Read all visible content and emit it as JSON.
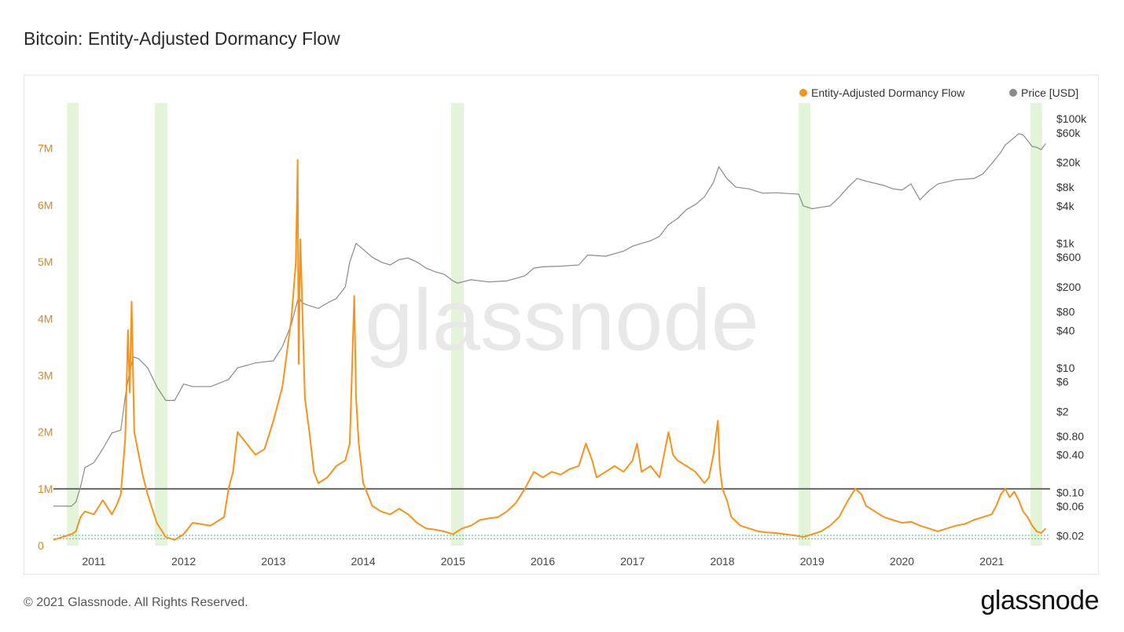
{
  "title": "Bitcoin: Entity-Adjusted Dormancy Flow",
  "footer": "© 2021 Glassnode. All Rights Reserved.",
  "brand": "glassnode",
  "watermark": "glassnode",
  "colors": {
    "dormancy": "#f7931a",
    "price": "#8a8a8a",
    "band": "#e3f4d8",
    "threshold": "#666666",
    "support": "#3cc7a0"
  },
  "chart_data": {
    "type": "line",
    "title": "Bitcoin: Entity-Adjusted Dormancy Flow",
    "legend": [
      "Entity-Adjusted Dormancy Flow",
      "Price [USD]"
    ],
    "x_ticks": [
      "2011",
      "2012",
      "2013",
      "2014",
      "2015",
      "2016",
      "2017",
      "2018",
      "2019",
      "2020",
      "2021"
    ],
    "y_left_ticks": [
      "0",
      "1M",
      "2M",
      "3M",
      "4M",
      "5M",
      "6M",
      "7M"
    ],
    "y_left_tick_values": [
      0,
      1000000,
      2000000,
      3000000,
      4000000,
      5000000,
      6000000,
      7000000
    ],
    "y_right_ticks": [
      "$0.02",
      "$0.06",
      "$0.10",
      "$0.40",
      "$0.80",
      "$2",
      "$6",
      "$10",
      "$40",
      "$80",
      "$200",
      "$600",
      "$1k",
      "$4k",
      "$8k",
      "$20k",
      "$60k",
      "$100k"
    ],
    "y_right_tick_values": [
      0.02,
      0.06,
      0.1,
      0.4,
      0.8,
      2,
      6,
      10,
      40,
      80,
      200,
      600,
      1000,
      4000,
      8000,
      20000,
      60000,
      100000
    ],
    "y_left_range": [
      0,
      7800000
    ],
    "y_right_range_log": [
      0.014,
      180000
    ],
    "x_range": [
      2010.55,
      2021.65
    ],
    "threshold_line": 1000000,
    "bottom_bands": [
      120000,
      180000
    ],
    "green_zones": [
      [
        2010.7,
        2010.83
      ],
      [
        2011.68,
        2011.82
      ],
      [
        2014.98,
        2015.12
      ],
      [
        2018.85,
        2018.98
      ],
      [
        2021.43,
        2021.56
      ]
    ],
    "series": [
      {
        "name": "Entity-Adjusted Dormancy Flow",
        "axis": "left",
        "x": [
          2010.55,
          2010.65,
          2010.75,
          2010.8,
          2010.85,
          2010.9,
          2011.0,
          2011.1,
          2011.2,
          2011.25,
          2011.3,
          2011.35,
          2011.38,
          2011.4,
          2011.42,
          2011.45,
          2011.5,
          2011.55,
          2011.6,
          2011.7,
          2011.8,
          2011.9,
          2012.0,
          2012.1,
          2012.3,
          2012.45,
          2012.5,
          2012.55,
          2012.6,
          2012.7,
          2012.8,
          2012.9,
          2013.0,
          2013.1,
          2013.2,
          2013.25,
          2013.27,
          2013.28,
          2013.3,
          2013.35,
          2013.4,
          2013.45,
          2013.5,
          2013.6,
          2013.7,
          2013.8,
          2013.85,
          2013.9,
          2013.92,
          2013.95,
          2014.0,
          2014.1,
          2014.2,
          2014.3,
          2014.4,
          2014.5,
          2014.6,
          2014.7,
          2014.8,
          2014.9,
          2015.0,
          2015.1,
          2015.2,
          2015.3,
          2015.4,
          2015.5,
          2015.6,
          2015.7,
          2015.8,
          2015.9,
          2016.0,
          2016.1,
          2016.2,
          2016.3,
          2016.4,
          2016.48,
          2016.55,
          2016.6,
          2016.7,
          2016.8,
          2016.9,
          2017.0,
          2017.05,
          2017.1,
          2017.2,
          2017.3,
          2017.4,
          2017.45,
          2017.5,
          2017.6,
          2017.7,
          2017.8,
          2017.85,
          2017.9,
          2017.95,
          2017.97,
          2018.0,
          2018.05,
          2018.1,
          2018.2,
          2018.3,
          2018.4,
          2018.5,
          2018.6,
          2018.7,
          2018.8,
          2018.9,
          2019.0,
          2019.1,
          2019.2,
          2019.3,
          2019.4,
          2019.48,
          2019.55,
          2019.6,
          2019.7,
          2019.8,
          2019.9,
          2020.0,
          2020.1,
          2020.2,
          2020.3,
          2020.4,
          2020.5,
          2020.6,
          2020.7,
          2020.8,
          2020.9,
          2021.0,
          2021.05,
          2021.1,
          2021.15,
          2021.2,
          2021.25,
          2021.3,
          2021.35,
          2021.4,
          2021.45,
          2021.5,
          2021.55,
          2021.6
        ],
        "values": [
          100000,
          150000,
          200000,
          250000,
          500000,
          600000,
          550000,
          800000,
          550000,
          700000,
          900000,
          1900000,
          3800000,
          2700000,
          4300000,
          2000000,
          1600000,
          1200000,
          900000,
          400000,
          150000,
          100000,
          200000,
          400000,
          350000,
          500000,
          1000000,
          1300000,
          2000000,
          1800000,
          1600000,
          1700000,
          2200000,
          2800000,
          4000000,
          5000000,
          6800000,
          3200000,
          5400000,
          2600000,
          2000000,
          1300000,
          1100000,
          1200000,
          1400000,
          1500000,
          1800000,
          4400000,
          2600000,
          1800000,
          1100000,
          700000,
          600000,
          550000,
          650000,
          550000,
          400000,
          300000,
          280000,
          250000,
          200000,
          300000,
          350000,
          450000,
          480000,
          500000,
          600000,
          750000,
          1000000,
          1300000,
          1200000,
          1300000,
          1250000,
          1350000,
          1400000,
          1800000,
          1500000,
          1200000,
          1300000,
          1400000,
          1300000,
          1500000,
          1800000,
          1300000,
          1400000,
          1200000,
          2000000,
          1600000,
          1500000,
          1400000,
          1300000,
          1100000,
          1200000,
          1600000,
          2200000,
          1400000,
          1000000,
          800000,
          500000,
          350000,
          300000,
          250000,
          230000,
          220000,
          200000,
          180000,
          150000,
          200000,
          250000,
          350000,
          500000,
          800000,
          1000000,
          900000,
          700000,
          600000,
          500000,
          450000,
          400000,
          420000,
          350000,
          300000,
          250000,
          300000,
          350000,
          380000,
          450000,
          500000,
          550000,
          700000,
          900000,
          1000000,
          850000,
          950000,
          800000,
          600000,
          500000,
          350000,
          250000,
          220000,
          300000
        ]
      },
      {
        "name": "Price [USD]",
        "axis": "right",
        "x": [
          2010.55,
          2010.6,
          2010.7,
          2010.75,
          2010.8,
          2010.85,
          2010.9,
          2011.0,
          2011.1,
          2011.2,
          2011.3,
          2011.35,
          2011.4,
          2011.44,
          2011.5,
          2011.6,
          2011.7,
          2011.8,
          2011.9,
          2012.0,
          2012.1,
          2012.3,
          2012.5,
          2012.6,
          2012.8,
          2013.0,
          2013.1,
          2013.2,
          2013.28,
          2013.32,
          2013.4,
          2013.5,
          2013.6,
          2013.7,
          2013.8,
          2013.85,
          2013.92,
          2014.0,
          2014.1,
          2014.2,
          2014.3,
          2014.4,
          2014.5,
          2014.6,
          2014.7,
          2014.8,
          2014.9,
          2015.0,
          2015.05,
          2015.2,
          2015.4,
          2015.6,
          2015.8,
          2015.9,
          2016.0,
          2016.2,
          2016.4,
          2016.5,
          2016.7,
          2016.9,
          2017.0,
          2017.1,
          2017.2,
          2017.3,
          2017.4,
          2017.5,
          2017.6,
          2017.7,
          2017.8,
          2017.9,
          2017.96,
          2018.05,
          2018.15,
          2018.3,
          2018.45,
          2018.6,
          2018.75,
          2018.85,
          2018.9,
          2019.0,
          2019.1,
          2019.2,
          2019.3,
          2019.4,
          2019.5,
          2019.6,
          2019.8,
          2019.9,
          2020.0,
          2020.1,
          2020.2,
          2020.3,
          2020.4,
          2020.6,
          2020.8,
          2020.9,
          2021.0,
          2021.1,
          2021.15,
          2021.25,
          2021.3,
          2021.35,
          2021.4,
          2021.45,
          2021.5,
          2021.55,
          2021.6
        ],
        "values": [
          0.06,
          0.06,
          0.06,
          0.06,
          0.07,
          0.12,
          0.25,
          0.3,
          0.5,
          0.9,
          1.0,
          3.5,
          9.0,
          15.0,
          14.0,
          10.0,
          5.0,
          3.0,
          3.0,
          5.5,
          5.0,
          5.0,
          6.5,
          10.0,
          12.0,
          13.0,
          22.0,
          50.0,
          140.0,
          110.0,
          100.0,
          90.0,
          110.0,
          130.0,
          200.0,
          500.0,
          1000.0,
          800.0,
          600.0,
          500.0,
          450.0,
          550.0,
          580.0,
          500.0,
          400.0,
          350.0,
          320.0,
          250.0,
          230.0,
          260.0,
          240.0,
          250.0,
          300.0,
          400.0,
          420.0,
          430.0,
          450.0,
          650.0,
          620.0,
          750.0,
          900.0,
          1000.0,
          1100.0,
          1300.0,
          2000.0,
          2500.0,
          3500.0,
          4200.0,
          5600.0,
          9500.0,
          17000.0,
          11000.0,
          8000.0,
          7500.0,
          6400.0,
          6500.0,
          6300.0,
          6200.0,
          4000.0,
          3600.0,
          3800.0,
          4000.0,
          5500.0,
          8000.0,
          11000.0,
          10000.0,
          8500.0,
          7500.0,
          7200.0,
          9000.0,
          5000.0,
          7000.0,
          9000.0,
          10500.0,
          11000.0,
          13000.0,
          19000.0,
          29000.0,
          38000.0,
          50000.0,
          58000.0,
          55000.0,
          45000.0,
          36000.0,
          35000.0,
          32000.0,
          40000.0
        ]
      }
    ]
  }
}
